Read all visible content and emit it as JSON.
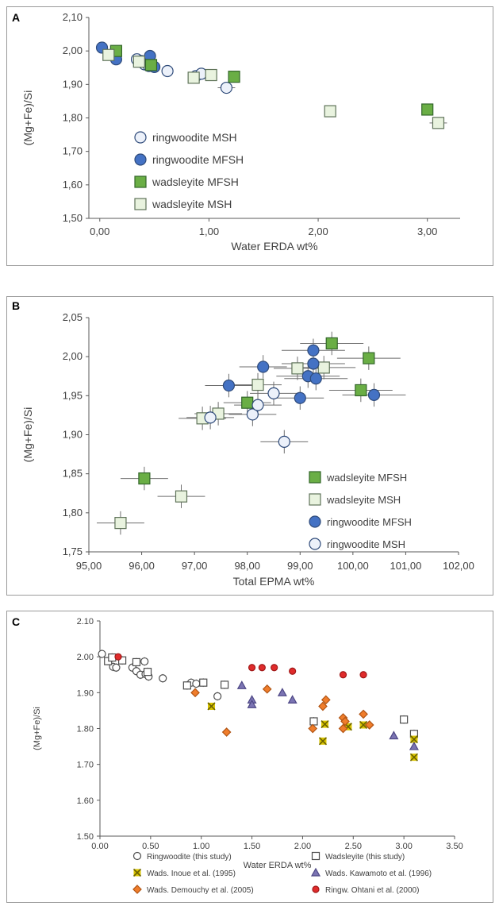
{
  "colors": {
    "ring_msh_fill": "#ecf1fa",
    "ring_msh_stroke": "#2f4b7a",
    "ring_mfsh_fill": "#4472c4",
    "ring_mfsh_stroke": "#2f4b7a",
    "wads_mfsh_fill": "#6aae45",
    "wads_mfsh_stroke": "#33662a",
    "wads_msh_fill": "#e9f3df",
    "wads_msh_stroke": "#5f7359",
    "inoue_fill": "#d9c400",
    "kawamoto_fill": "#7b74b3",
    "demouchy_fill": "#f07d2b",
    "ohtani_fill": "#e02b2b",
    "axis": "#595959",
    "grid": "#d9d9d9",
    "text": "#404040"
  },
  "chart_data": [
    {
      "panel_label": "A",
      "type": "scatter",
      "xlabel": "Water ERDA wt%",
      "ylabel": "(Mg+Fe)/Si",
      "xlim": [
        -0.1,
        3.3
      ],
      "ylim": [
        1.5,
        2.1
      ],
      "xticks": [
        0,
        1,
        2,
        3
      ],
      "xtick_labels": [
        "0,00",
        "1,00",
        "2,00",
        "3,00"
      ],
      "yticks": [
        1.5,
        1.6,
        1.7,
        1.8,
        1.9,
        2.0,
        2.1
      ],
      "ytick_labels": [
        "1,50",
        "1,60",
        "1,70",
        "1,80",
        "1,90",
        "2,00",
        "2,10"
      ],
      "grid": false,
      "legend_position": "center-left",
      "legend_entries": [
        "ringwoodite MSH",
        "ringwoodite MFSH",
        "wadsleyite MFSH",
        "wadsleyite MSH"
      ],
      "series": [
        {
          "name": "ringwoodite MSH",
          "style": "ring_msh",
          "points": [
            [
              0.34,
              1.975
            ],
            [
              0.41,
              1.96
            ],
            [
              0.45,
              1.955
            ],
            [
              0.62,
              1.94
            ],
            [
              0.88,
              1.925
            ],
            [
              0.93,
              1.932
            ],
            [
              1.16,
              1.89
            ]
          ]
        },
        {
          "name": "ringwoodite MFSH",
          "style": "ring_mfsh",
          "points": [
            [
              0.02,
              2.01
            ],
            [
              0.15,
              1.975
            ],
            [
              0.38,
              1.97
            ],
            [
              0.46,
              1.985
            ],
            [
              0.5,
              1.952
            ]
          ]
        },
        {
          "name": "wadsleyite MFSH",
          "style": "wads_mfsh",
          "points": [
            [
              0.15,
              2.0
            ],
            [
              0.47,
              1.958
            ],
            [
              1.23,
              1.923
            ],
            [
              3.0,
              1.825
            ]
          ]
        },
        {
          "name": "wadsleyite MSH",
          "style": "wads_msh",
          "points": [
            [
              0.08,
              1.988
            ],
            [
              0.36,
              1.968
            ],
            [
              0.86,
              1.92
            ],
            [
              1.02,
              1.928
            ],
            [
              2.11,
              1.82
            ],
            [
              3.1,
              1.785
            ]
          ]
        }
      ]
    },
    {
      "panel_label": "B",
      "type": "scatter",
      "xlabel": "Total EPMA wt%",
      "ylabel": "(Mg+Fe)/Si",
      "xlim": [
        95,
        102
      ],
      "ylim": [
        1.75,
        2.05
      ],
      "xticks": [
        95,
        96,
        97,
        98,
        99,
        100,
        101,
        102
      ],
      "xtick_labels": [
        "95,00",
        "96,00",
        "97,00",
        "98,00",
        "99,00",
        "100,00",
        "101,00",
        "102,00"
      ],
      "yticks": [
        1.75,
        1.8,
        1.85,
        1.9,
        1.95,
        2.0,
        2.05
      ],
      "ytick_labels": [
        "1,75",
        "1,80",
        "1,85",
        "1,90",
        "1,95",
        "2,00",
        "2,05"
      ],
      "grid": false,
      "legend_position": "bottom-right",
      "legend_entries": [
        "wadsleyite MFSH",
        "wadsleyite MSH",
        "ringwoodite MFSH",
        "ringwoodite MSH"
      ],
      "series": [
        {
          "name": "wadsleyite MFSH",
          "style": "wads_mfsh",
          "points": [
            [
              96.05,
              1.844
            ],
            [
              98.0,
              1.941
            ],
            [
              99.6,
              2.017
            ],
            [
              100.15,
              1.957
            ],
            [
              100.3,
              1.998
            ]
          ]
        },
        {
          "name": "wadsleyite MSH",
          "style": "wads_msh",
          "points": [
            [
              95.6,
              1.787
            ],
            [
              96.75,
              1.821
            ],
            [
              97.15,
              1.921
            ],
            [
              97.45,
              1.927
            ],
            [
              98.2,
              1.964
            ],
            [
              98.95,
              1.985
            ],
            [
              99.45,
              1.986
            ]
          ]
        },
        {
          "name": "ringwoodite MFSH",
          "style": "ring_mfsh",
          "points": [
            [
              97.65,
              1.963
            ],
            [
              98.3,
              1.987
            ],
            [
              99.0,
              1.947
            ],
            [
              99.15,
              1.975
            ],
            [
              99.25,
              2.008
            ],
            [
              99.25,
              1.991
            ],
            [
              99.3,
              1.972
            ],
            [
              100.4,
              1.951
            ]
          ]
        },
        {
          "name": "ringwoodite MSH",
          "style": "ring_msh",
          "points": [
            [
              97.3,
              1.922
            ],
            [
              98.1,
              1.926
            ],
            [
              98.2,
              1.938
            ],
            [
              98.5,
              1.953
            ],
            [
              98.7,
              1.891
            ]
          ]
        }
      ]
    },
    {
      "panel_label": "C",
      "type": "scatter",
      "xlabel": "Water ERDA wt%",
      "ylabel": "(Mg+Fe)/Si",
      "xlim": [
        0,
        3.5
      ],
      "ylim": [
        1.5,
        2.1
      ],
      "xticks": [
        0,
        0.5,
        1,
        1.5,
        2,
        2.5,
        3,
        3.5
      ],
      "xtick_labels": [
        "0.00",
        "0.50",
        "1.00",
        "1.50",
        "2.00",
        "2.50",
        "3.00",
        "3.50"
      ],
      "yticks": [
        1.5,
        1.6,
        1.7,
        1.8,
        1.9,
        2.0,
        2.1
      ],
      "ytick_labels": [
        "1.50",
        "1.60",
        "1.70",
        "1.80",
        "1.90",
        "2.00",
        "2.10"
      ],
      "grid": false,
      "legend_position": "bottom",
      "legend_entries": [
        "Ringwoodite (this study)",
        "Wadsleyite (this study)",
        "Wads. Inoue et al. (1995)",
        "Wads. Kawamoto et al. (1996)",
        "Wads. Demouchy et al. (2005)",
        "Ringw. Ohtani et al. (2000)"
      ],
      "series": [
        {
          "name": "Ringwoodite (this study)",
          "style": "ring_msh_c",
          "points": [
            [
              0.02,
              2.008
            ],
            [
              0.13,
              1.972
            ],
            [
              0.16,
              1.97
            ],
            [
              0.32,
              1.97
            ],
            [
              0.36,
              1.96
            ],
            [
              0.4,
              1.95
            ],
            [
              0.44,
              1.987
            ],
            [
              0.45,
              1.952
            ],
            [
              0.48,
              1.945
            ],
            [
              0.62,
              1.94
            ],
            [
              0.9,
              1.928
            ],
            [
              0.95,
              1.925
            ],
            [
              1.16,
              1.89
            ]
          ]
        },
        {
          "name": "Wadsleyite (this study)",
          "style": "wads_msh_c",
          "points": [
            [
              0.08,
              1.988
            ],
            [
              0.12,
              1.998
            ],
            [
              0.22,
              1.99
            ],
            [
              0.36,
              1.985
            ],
            [
              0.47,
              1.958
            ],
            [
              0.86,
              1.92
            ],
            [
              1.02,
              1.928
            ],
            [
              1.23,
              1.922
            ],
            [
              2.11,
              1.82
            ],
            [
              3.0,
              1.825
            ],
            [
              3.1,
              1.785
            ]
          ]
        },
        {
          "name": "Wads. Inoue et al. (1995)",
          "style": "inoue",
          "points": [
            [
              1.1,
              1.862
            ],
            [
              2.2,
              1.765
            ],
            [
              2.22,
              1.812
            ],
            [
              2.45,
              1.805
            ],
            [
              2.6,
              1.81
            ],
            [
              3.1,
              1.77
            ],
            [
              3.1,
              1.72
            ]
          ]
        },
        {
          "name": "Wads. Kawamoto et al. (1996)",
          "style": "kawamoto",
          "points": [
            [
              1.4,
              1.92
            ],
            [
              1.5,
              1.88
            ],
            [
              1.5,
              1.867
            ],
            [
              1.8,
              1.9
            ],
            [
              1.9,
              1.88
            ],
            [
              2.9,
              1.78
            ],
            [
              3.1,
              1.75
            ]
          ]
        },
        {
          "name": "Wads. Demouchy et al. (2005)",
          "style": "demouchy",
          "points": [
            [
              0.94,
              1.9
            ],
            [
              1.25,
              1.79
            ],
            [
              1.65,
              1.91
            ],
            [
              2.1,
              1.8
            ],
            [
              2.2,
              1.862
            ],
            [
              2.23,
              1.88
            ],
            [
              2.4,
              1.8
            ],
            [
              2.4,
              1.83
            ],
            [
              2.42,
              1.82
            ],
            [
              2.6,
              1.84
            ],
            [
              2.66,
              1.81
            ]
          ]
        },
        {
          "name": "Ringw. Ohtani et al. (2000)",
          "style": "ohtani",
          "points": [
            [
              0.18,
              2.0
            ],
            [
              1.5,
              1.97
            ],
            [
              1.6,
              1.97
            ],
            [
              1.72,
              1.97
            ],
            [
              1.9,
              1.96
            ],
            [
              2.4,
              1.95
            ],
            [
              2.6,
              1.95
            ]
          ]
        }
      ]
    }
  ]
}
